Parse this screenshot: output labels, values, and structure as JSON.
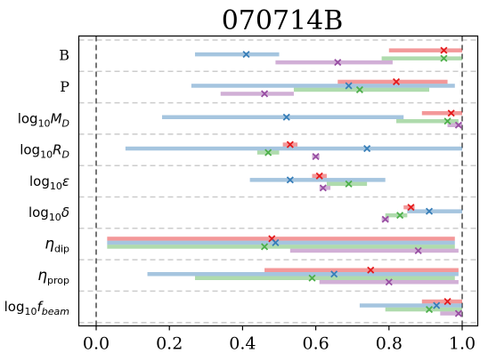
{
  "chart_data": {
    "type": "interval",
    "title": "070714B",
    "xlabel": "",
    "ylabel": "",
    "xlim": [
      0.0,
      1.0
    ],
    "x_ticks": [
      0.0,
      0.2,
      0.4,
      0.6,
      0.8,
      1.0
    ],
    "x_tick_labels": [
      "0.0",
      "0.2",
      "0.4",
      "0.6",
      "0.8",
      "1.0"
    ],
    "reference_lines_x": [
      0.0,
      1.0
    ],
    "grid": "horizontal dashed separators",
    "colors": {
      "red": "#e41a1c",
      "blue": "#377eb8",
      "green": "#4daf4a",
      "purple": "#984ea3"
    },
    "rows": [
      {
        "label": "B",
        "label_type": "text",
        "series": [
          {
            "color": "red",
            "low": 0.8,
            "high": 1.0,
            "marker": 0.95
          },
          {
            "color": "blue",
            "low": 0.27,
            "high": 0.5,
            "marker": 0.41
          },
          {
            "color": "green",
            "low": 0.78,
            "high": 1.0,
            "marker": 0.95
          },
          {
            "color": "purple",
            "low": 0.49,
            "high": 0.81,
            "marker": 0.66
          }
        ]
      },
      {
        "label": "P",
        "label_type": "text",
        "series": [
          {
            "color": "red",
            "low": 0.66,
            "high": 0.96,
            "marker": 0.82
          },
          {
            "color": "blue",
            "low": 0.26,
            "high": 0.98,
            "marker": 0.69
          },
          {
            "color": "green",
            "low": 0.54,
            "high": 0.91,
            "marker": 0.72
          },
          {
            "color": "purple",
            "low": 0.34,
            "high": 0.54,
            "marker": 0.46
          }
        ]
      },
      {
        "label_base": "log",
        "label_sub": "10",
        "label_var": "M",
        "label_var_sub": "D",
        "label_type": "math",
        "series": [
          {
            "color": "red",
            "low": 0.89,
            "high": 1.0,
            "marker": 0.97
          },
          {
            "color": "blue",
            "low": 0.18,
            "high": 0.84,
            "marker": 0.52
          },
          {
            "color": "green",
            "low": 0.82,
            "high": 0.99,
            "marker": 0.96
          },
          {
            "color": "purple",
            "low": 0.96,
            "high": 1.0,
            "marker": 0.99
          }
        ]
      },
      {
        "label_base": "log",
        "label_sub": "10",
        "label_var": "R",
        "label_var_sub": "D",
        "label_type": "math",
        "series": [
          {
            "color": "red",
            "low": 0.51,
            "high": 0.55,
            "marker": 0.53
          },
          {
            "color": "blue",
            "low": 0.08,
            "high": 1.0,
            "marker": 0.74
          },
          {
            "color": "green",
            "low": 0.44,
            "high": 0.5,
            "marker": 0.47
          },
          {
            "color": "purple",
            "low": 0.59,
            "high": 0.61,
            "marker": 0.6
          }
        ]
      },
      {
        "label_base": "log",
        "label_sub": "10",
        "label_var": "ε",
        "label_var_sub": "",
        "label_type": "math",
        "series": [
          {
            "color": "red",
            "low": 0.59,
            "high": 0.63,
            "marker": 0.61
          },
          {
            "color": "blue",
            "low": 0.42,
            "high": 0.79,
            "marker": 0.53
          },
          {
            "color": "green",
            "low": 0.63,
            "high": 0.74,
            "marker": 0.69
          },
          {
            "color": "purple",
            "low": 0.61,
            "high": 0.64,
            "marker": 0.62
          }
        ]
      },
      {
        "label_base": "log",
        "label_sub": "10",
        "label_var": "δ",
        "label_var_sub": "",
        "label_type": "math",
        "series": [
          {
            "color": "red",
            "low": 0.84,
            "high": 0.87,
            "marker": 0.86
          },
          {
            "color": "blue",
            "low": 0.85,
            "high": 1.0,
            "marker": 0.91
          },
          {
            "color": "green",
            "low": 0.79,
            "high": 0.85,
            "marker": 0.83
          },
          {
            "color": "purple",
            "low": 0.78,
            "high": 0.8,
            "marker": 0.79
          }
        ]
      },
      {
        "label_base": "η",
        "label_sub": "dip",
        "label_type": "eta",
        "series": [
          {
            "color": "red",
            "low": 0.03,
            "high": 0.98,
            "marker": 0.48
          },
          {
            "color": "blue",
            "low": 0.03,
            "high": 0.98,
            "marker": 0.49
          },
          {
            "color": "green",
            "low": 0.03,
            "high": 0.98,
            "marker": 0.46
          },
          {
            "color": "purple",
            "low": 0.53,
            "high": 0.99,
            "marker": 0.88
          }
        ]
      },
      {
        "label_base": "η",
        "label_sub": "prop",
        "label_type": "eta",
        "series": [
          {
            "color": "red",
            "low": 0.46,
            "high": 0.99,
            "marker": 0.75
          },
          {
            "color": "blue",
            "low": 0.14,
            "high": 0.99,
            "marker": 0.65
          },
          {
            "color": "green",
            "low": 0.27,
            "high": 0.98,
            "marker": 0.59
          },
          {
            "color": "purple",
            "low": 0.61,
            "high": 0.99,
            "marker": 0.8
          }
        ]
      },
      {
        "label_base": "log",
        "label_sub": "10",
        "label_var": "f",
        "label_var_sub": "beam",
        "label_type": "math",
        "series": [
          {
            "color": "red",
            "low": 0.89,
            "high": 1.0,
            "marker": 0.96
          },
          {
            "color": "blue",
            "low": 0.72,
            "high": 1.0,
            "marker": 0.93
          },
          {
            "color": "green",
            "low": 0.79,
            "high": 1.0,
            "marker": 0.91
          },
          {
            "color": "purple",
            "low": 0.94,
            "high": 1.0,
            "marker": 0.99
          }
        ]
      }
    ]
  }
}
